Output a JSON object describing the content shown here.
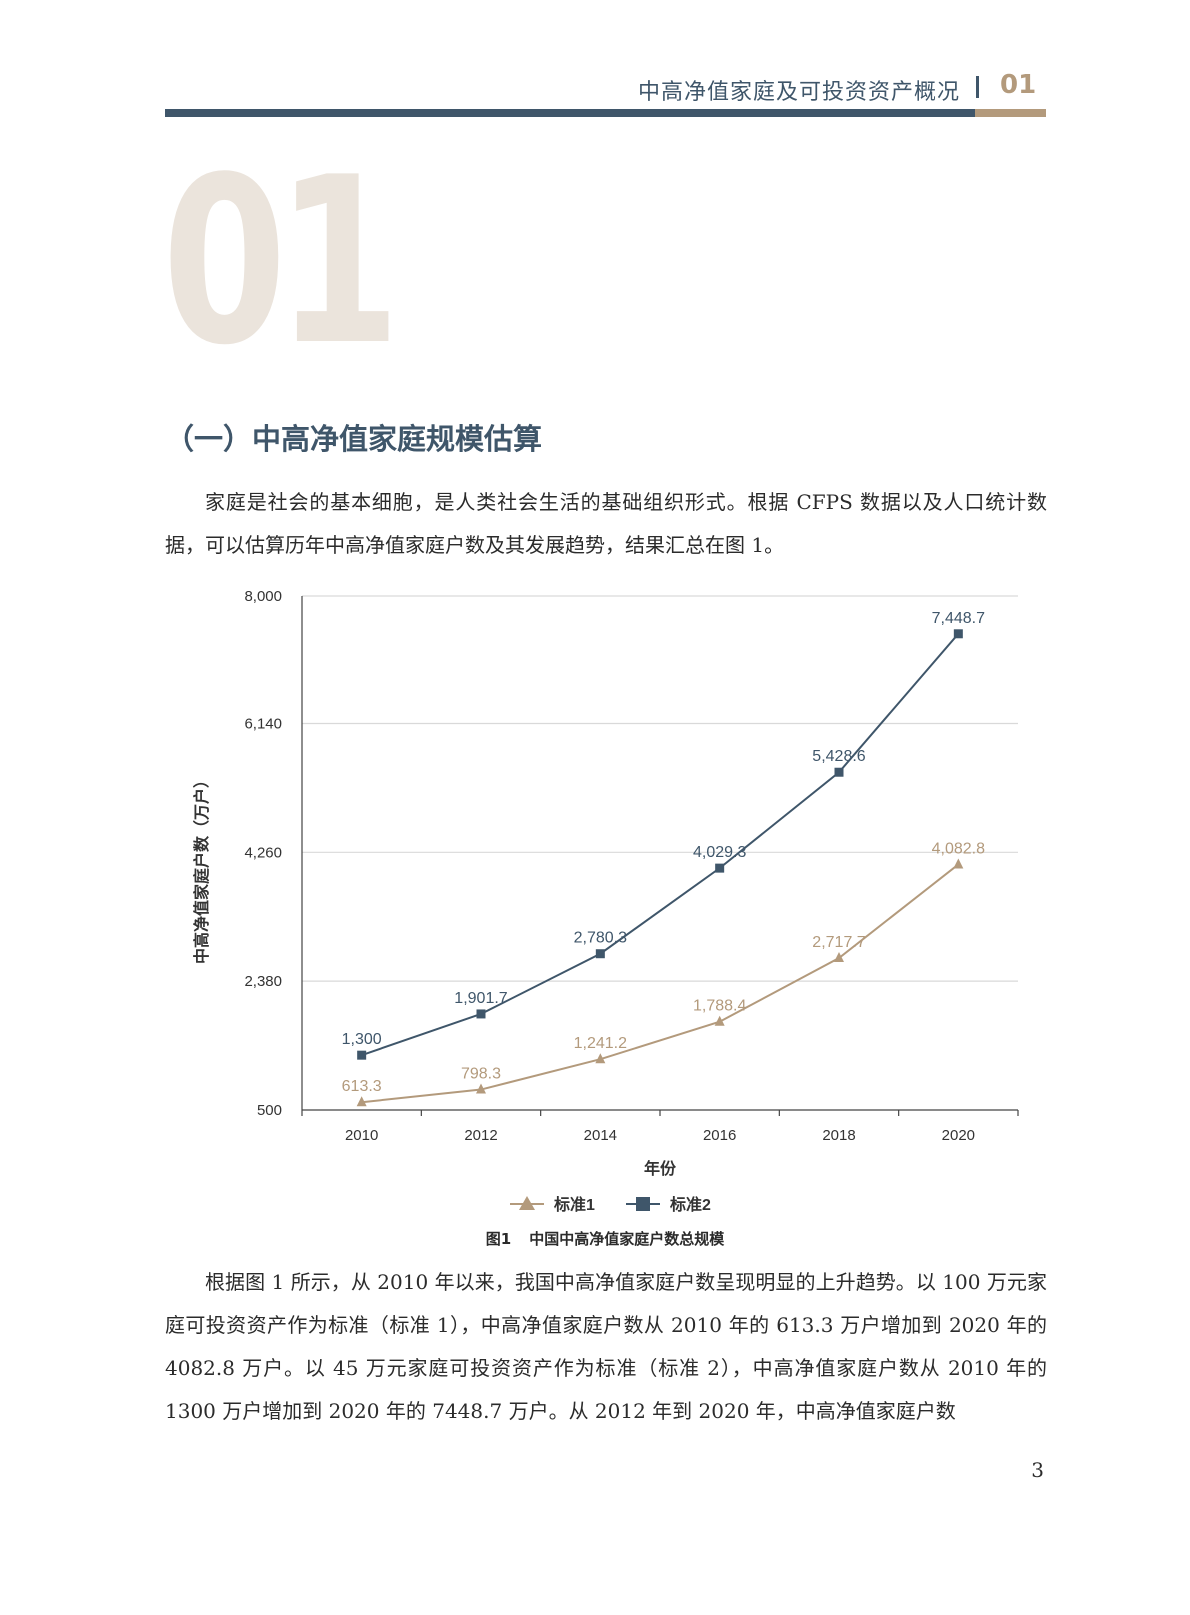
{
  "header": {
    "title": "中高净值家庭及可投资资产概况",
    "chapter_num": "01"
  },
  "big_chapter_num": "01",
  "section": {
    "title": "（一）中高净值家庭规模估算"
  },
  "paragraphs": {
    "p1": "家庭是社会的基本细胞，是人类社会生活的基础组织形式。根据 CFPS 数据以及人口统计数据，可以估算历年中高净值家庭户数及其发展趋势，结果汇总在图 1。",
    "p2": "根据图 1 所示，从 2010 年以来，我国中高净值家庭户数呈现明显的上升趋势。以 100 万元家庭可投资资产作为标准（标准 1），中高净值家庭户数从 2010 年的 613.3 万户增加到 2020 年的 4082.8 万户。以 45 万元家庭可投资资产作为标准（标准 2），中高净值家庭户数从 2010 年的 1300 万户增加到 2020 年的 7448.7 万户。从 2012 年到 2020 年，中高净值家庭户数"
  },
  "figure": {
    "number": "图1",
    "title": "中国中高净值家庭户数总规模"
  },
  "chart_data": {
    "type": "line",
    "x": [
      "2010",
      "2012",
      "2014",
      "2016",
      "2018",
      "2020"
    ],
    "xlabel": "年份",
    "ylabel": "中高净值家庭户数（万户）",
    "ylim": [
      500,
      8000
    ],
    "yticks": [
      500,
      2380,
      4260,
      6140,
      8000
    ],
    "ytick_labels": [
      "500",
      "2,380",
      "4,260",
      "6,140",
      "8,000"
    ],
    "grid": true,
    "legend_position": "bottom-center",
    "series": [
      {
        "name": "标准1",
        "marker": "triangle",
        "color": "#b39a7c",
        "values": [
          613.3,
          798.3,
          1241.2,
          1788.4,
          2717.7,
          4082.8
        ],
        "labels": [
          "613.3",
          "798.3",
          "1,241.2",
          "1,788.4",
          "2,717.7",
          "4,082.8"
        ]
      },
      {
        "name": "标准2",
        "marker": "square",
        "color": "#3f566a",
        "values": [
          1300,
          1901.7,
          2780.3,
          4029.3,
          5428.6,
          7448.7
        ],
        "labels": [
          "1,300",
          "1,901.7",
          "2,780.3",
          "4,029.3",
          "5,428.6",
          "7,448.7"
        ]
      }
    ]
  },
  "page_number": "3"
}
